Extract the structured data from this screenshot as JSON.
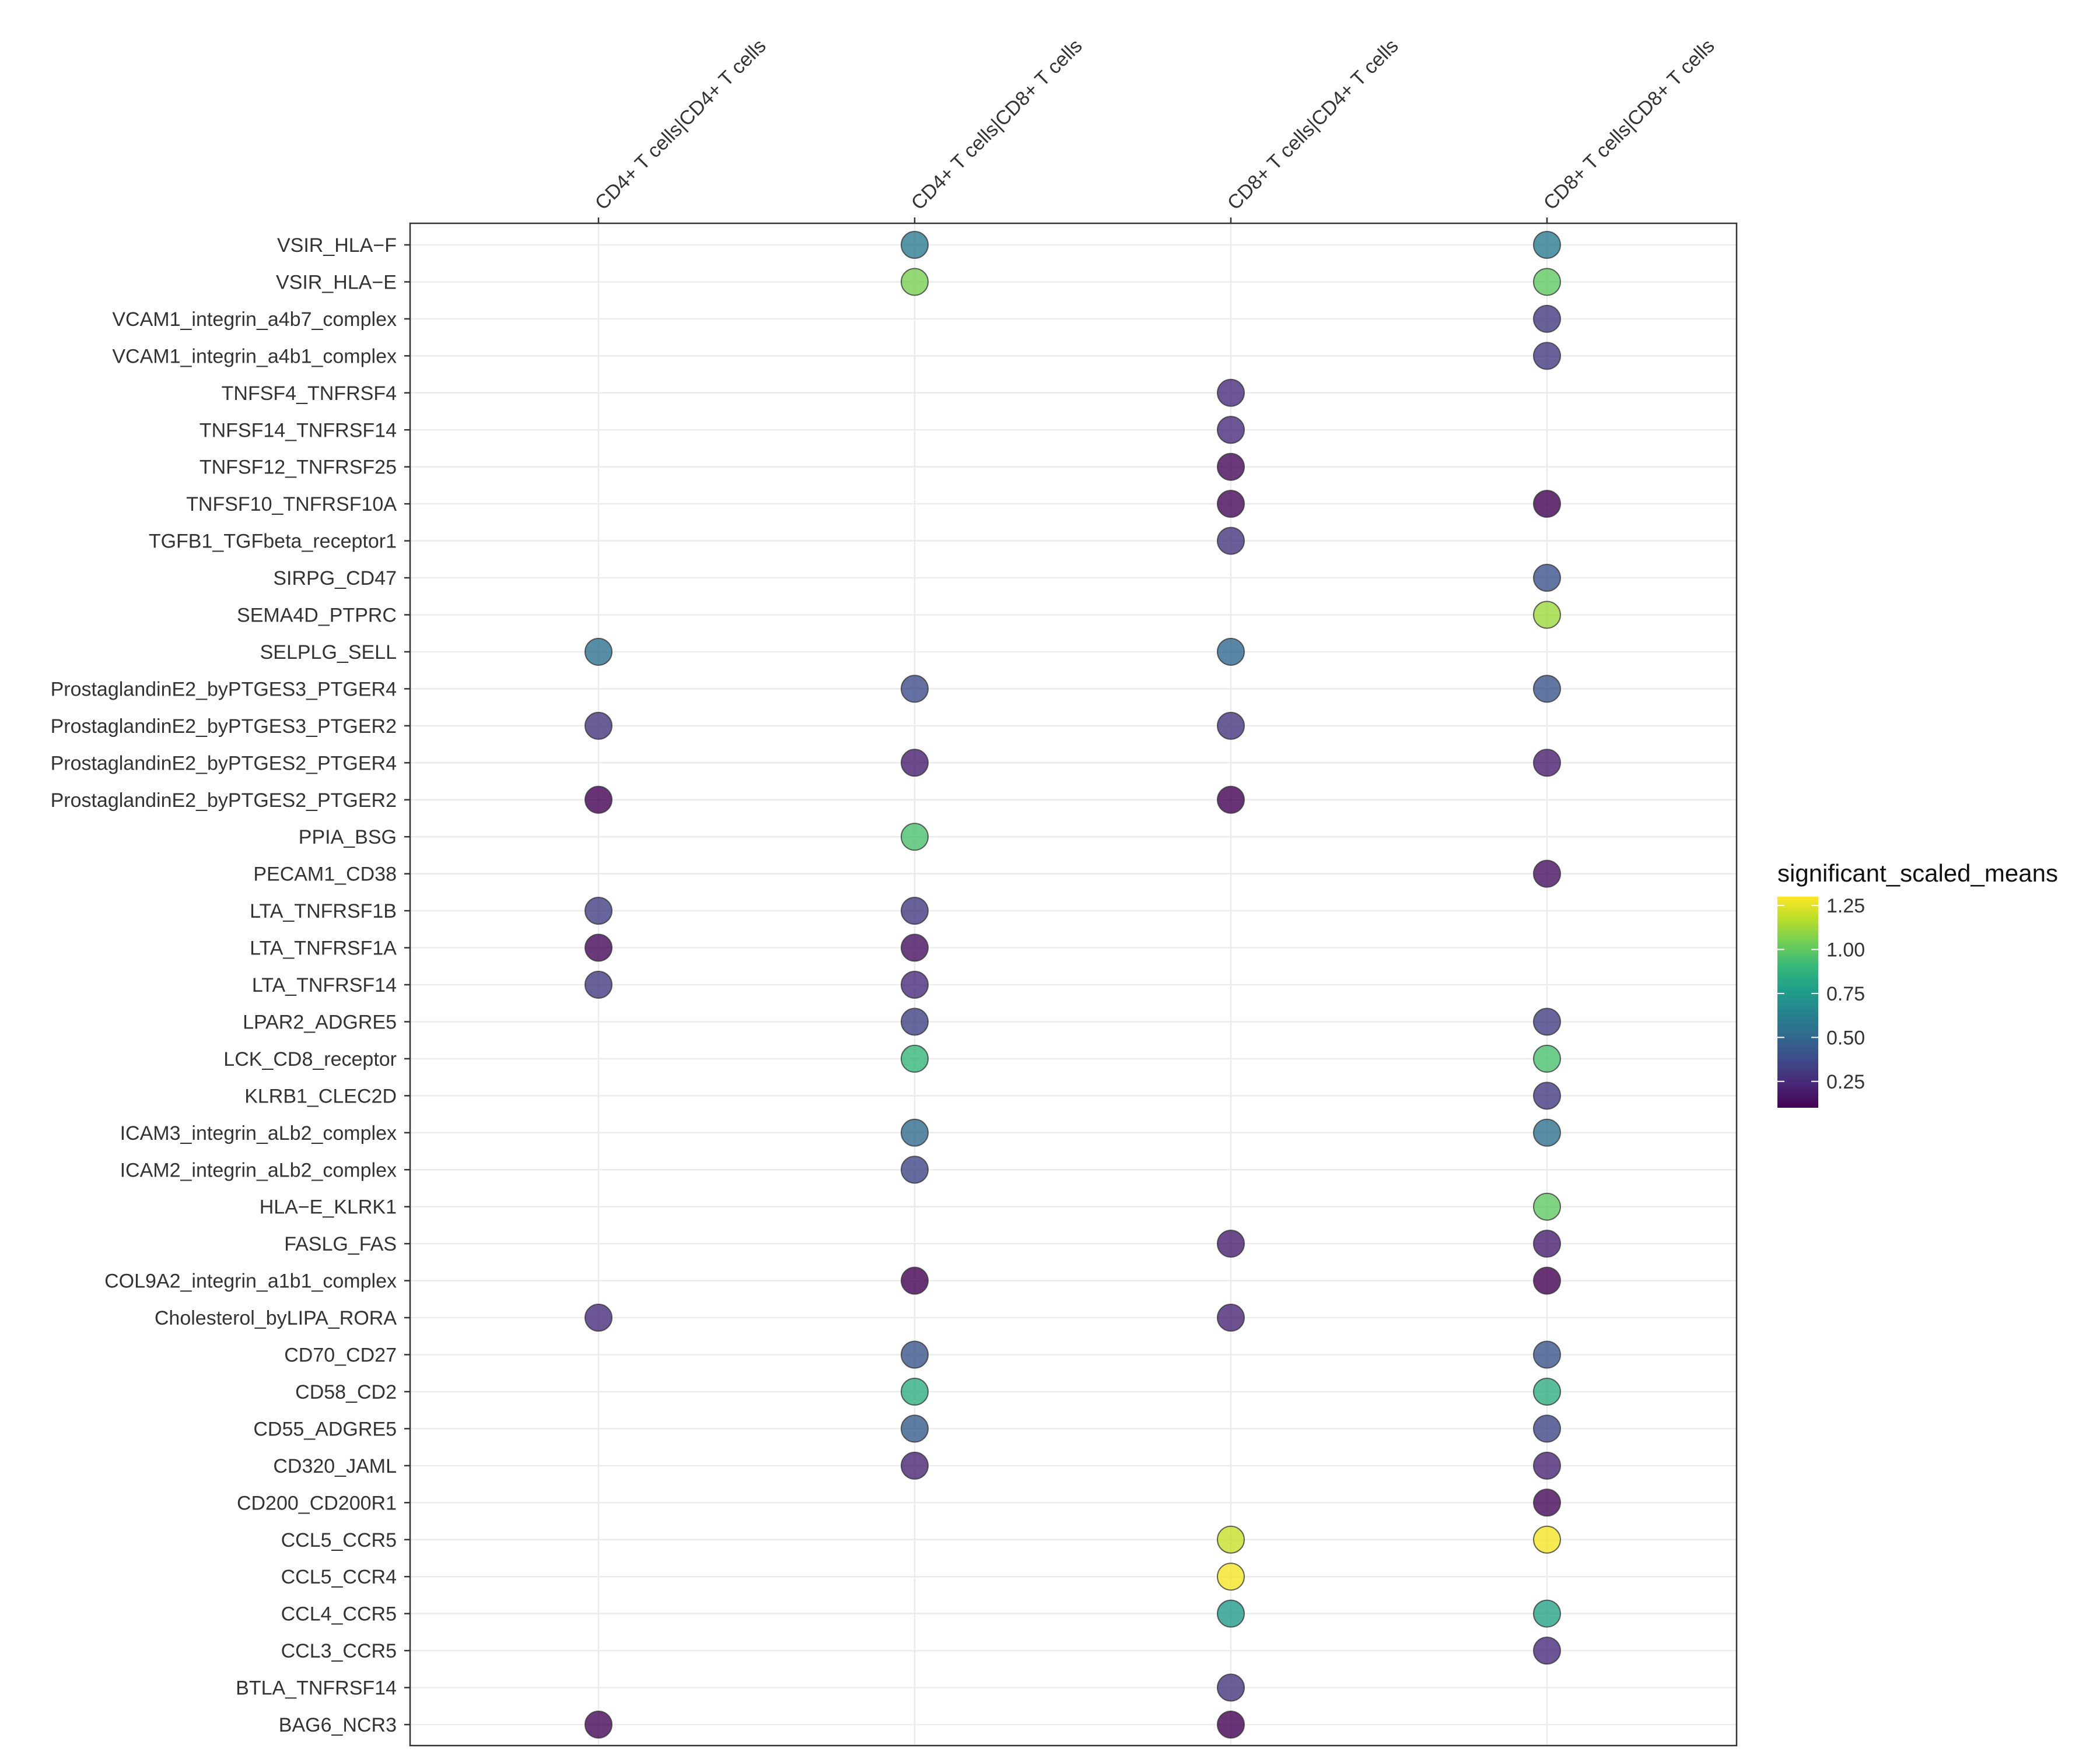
{
  "chart_data": {
    "type": "scatter",
    "title": "",
    "xlabel": "",
    "ylabel": "",
    "x_categories": [
      "CD4+ T cells|CD4+ T cells",
      "CD4+ T cells|CD8+ T cells",
      "CD8+ T cells|CD4+ T cells",
      "CD8+ T cells|CD8+ T cells"
    ],
    "y_categories": [
      "VSIR_HLA−F",
      "VSIR_HLA−E",
      "VCAM1_integrin_a4b7_complex",
      "VCAM1_integrin_a4b1_complex",
      "TNFSF4_TNFRSF4",
      "TNFSF14_TNFRSF14",
      "TNFSF12_TNFRSF25",
      "TNFSF10_TNFRSF10A",
      "TGFB1_TGFbeta_receptor1",
      "SIRPG_CD47",
      "SEMA4D_PTPRC",
      "SELPLG_SELL",
      "ProstaglandinE2_byPTGES3_PTGER4",
      "ProstaglandinE2_byPTGES3_PTGER2",
      "ProstaglandinE2_byPTGES2_PTGER4",
      "ProstaglandinE2_byPTGES2_PTGER2",
      "PPIA_BSG",
      "PECAM1_CD38",
      "LTA_TNFRSF1B",
      "LTA_TNFRSF1A",
      "LTA_TNFRSF14",
      "LPAR2_ADGRE5",
      "LCK_CD8_receptor",
      "KLRB1_CLEC2D",
      "ICAM3_integrin_aLb2_complex",
      "ICAM2_integrin_aLb2_complex",
      "HLA−E_KLRK1",
      "FASLG_FAS",
      "COL9A2_integrin_a1b1_complex",
      "Cholesterol_byLIPA_RORA",
      "CD70_CD27",
      "CD58_CD2",
      "CD55_ADGRE5",
      "CD320_JAML",
      "CD200_CD200R1",
      "CCL5_CCR5",
      "CCL5_CCR4",
      "CCL4_CCR5",
      "CCL3_CCR5",
      "BTLA_TNFRSF14",
      "BAG6_NCR3"
    ],
    "points": [
      {
        "y": "VSIR_HLA−F",
        "x": "CD4+ T cells|CD8+ T cells",
        "value": 0.6
      },
      {
        "y": "VSIR_HLA−F",
        "x": "CD8+ T cells|CD8+ T cells",
        "value": 0.6
      },
      {
        "y": "VSIR_HLA−E",
        "x": "CD4+ T cells|CD8+ T cells",
        "value": 1.05
      },
      {
        "y": "VSIR_HLA−E",
        "x": "CD8+ T cells|CD8+ T cells",
        "value": 1.0
      },
      {
        "y": "VCAM1_integrin_a4b7_complex",
        "x": "CD8+ T cells|CD8+ T cells",
        "value": 0.3
      },
      {
        "y": "VCAM1_integrin_a4b1_complex",
        "x": "CD8+ T cells|CD8+ T cells",
        "value": 0.3
      },
      {
        "y": "TNFSF4_TNFRSF4",
        "x": "CD8+ T cells|CD4+ T cells",
        "value": 0.25
      },
      {
        "y": "TNFSF14_TNFRSF14",
        "x": "CD8+ T cells|CD4+ T cells",
        "value": 0.25
      },
      {
        "y": "TNFSF12_TNFRSF25",
        "x": "CD8+ T cells|CD4+ T cells",
        "value": 0.12
      },
      {
        "y": "TNFSF10_TNFRSF10A",
        "x": "CD8+ T cells|CD4+ T cells",
        "value": 0.12
      },
      {
        "y": "TNFSF10_TNFRSF10A",
        "x": "CD8+ T cells|CD8+ T cells",
        "value": 0.1
      },
      {
        "y": "TGFB1_TGFbeta_receptor1",
        "x": "CD8+ T cells|CD4+ T cells",
        "value": 0.28
      },
      {
        "y": "SIRPG_CD47",
        "x": "CD8+ T cells|CD8+ T cells",
        "value": 0.4
      },
      {
        "y": "SEMA4D_PTPRC",
        "x": "CD8+ T cells|CD8+ T cells",
        "value": 1.12
      },
      {
        "y": "SELPLG_SELL",
        "x": "CD4+ T cells|CD4+ T cells",
        "value": 0.55
      },
      {
        "y": "SELPLG_SELL",
        "x": "CD8+ T cells|CD4+ T cells",
        "value": 0.5
      },
      {
        "y": "ProstaglandinE2_byPTGES3_PTGER4",
        "x": "CD4+ T cells|CD8+ T cells",
        "value": 0.38
      },
      {
        "y": "ProstaglandinE2_byPTGES3_PTGER4",
        "x": "CD8+ T cells|CD8+ T cells",
        "value": 0.42
      },
      {
        "y": "ProstaglandinE2_byPTGES3_PTGER2",
        "x": "CD4+ T cells|CD4+ T cells",
        "value": 0.28
      },
      {
        "y": "ProstaglandinE2_byPTGES3_PTGER2",
        "x": "CD8+ T cells|CD4+ T cells",
        "value": 0.28
      },
      {
        "y": "ProstaglandinE2_byPTGES2_PTGER4",
        "x": "CD4+ T cells|CD8+ T cells",
        "value": 0.2
      },
      {
        "y": "ProstaglandinE2_byPTGES2_PTGER4",
        "x": "CD8+ T cells|CD8+ T cells",
        "value": 0.2
      },
      {
        "y": "ProstaglandinE2_byPTGES2_PTGER2",
        "x": "CD4+ T cells|CD4+ T cells",
        "value": 0.1
      },
      {
        "y": "ProstaglandinE2_byPTGES2_PTGER2",
        "x": "CD8+ T cells|CD4+ T cells",
        "value": 0.1
      },
      {
        "y": "PPIA_BSG",
        "x": "CD4+ T cells|CD8+ T cells",
        "value": 0.95
      },
      {
        "y": "PECAM1_CD38",
        "x": "CD8+ T cells|CD8+ T cells",
        "value": 0.15
      },
      {
        "y": "LTA_TNFRSF1B",
        "x": "CD4+ T cells|CD4+ T cells",
        "value": 0.32
      },
      {
        "y": "LTA_TNFRSF1B",
        "x": "CD4+ T cells|CD8+ T cells",
        "value": 0.3
      },
      {
        "y": "LTA_TNFRSF1A",
        "x": "CD4+ T cells|CD4+ T cells",
        "value": 0.12
      },
      {
        "y": "LTA_TNFRSF1A",
        "x": "CD4+ T cells|CD8+ T cells",
        "value": 0.15
      },
      {
        "y": "LTA_TNFRSF14",
        "x": "CD4+ T cells|CD4+ T cells",
        "value": 0.3
      },
      {
        "y": "LTA_TNFRSF14",
        "x": "CD4+ T cells|CD8+ T cells",
        "value": 0.25
      },
      {
        "y": "LPAR2_ADGRE5",
        "x": "CD4+ T cells|CD8+ T cells",
        "value": 0.33
      },
      {
        "y": "LPAR2_ADGRE5",
        "x": "CD8+ T cells|CD8+ T cells",
        "value": 0.32
      },
      {
        "y": "LCK_CD8_receptor",
        "x": "CD4+ T cells|CD8+ T cells",
        "value": 0.9
      },
      {
        "y": "LCK_CD8_receptor",
        "x": "CD8+ T cells|CD8+ T cells",
        "value": 0.95
      },
      {
        "y": "KLRB1_CLEC2D",
        "x": "CD8+ T cells|CD8+ T cells",
        "value": 0.3
      },
      {
        "y": "ICAM3_integrin_aLb2_complex",
        "x": "CD4+ T cells|CD8+ T cells",
        "value": 0.52
      },
      {
        "y": "ICAM3_integrin_aLb2_complex",
        "x": "CD8+ T cells|CD8+ T cells",
        "value": 0.55
      },
      {
        "y": "ICAM2_integrin_aLb2_complex",
        "x": "CD4+ T cells|CD8+ T cells",
        "value": 0.35
      },
      {
        "y": "HLA−E_KLRK1",
        "x": "CD8+ T cells|CD8+ T cells",
        "value": 1.0
      },
      {
        "y": "FASLG_FAS",
        "x": "CD8+ T cells|CD4+ T cells",
        "value": 0.2
      },
      {
        "y": "FASLG_FAS",
        "x": "CD8+ T cells|CD8+ T cells",
        "value": 0.2
      },
      {
        "y": "COL9A2_integrin_a1b1_complex",
        "x": "CD4+ T cells|CD8+ T cells",
        "value": 0.1
      },
      {
        "y": "COL9A2_integrin_a1b1_complex",
        "x": "CD8+ T cells|CD8+ T cells",
        "value": 0.1
      },
      {
        "y": "Cholesterol_byLIPA_RORA",
        "x": "CD4+ T cells|CD4+ T cells",
        "value": 0.25
      },
      {
        "y": "Cholesterol_byLIPA_RORA",
        "x": "CD8+ T cells|CD4+ T cells",
        "value": 0.22
      },
      {
        "y": "CD70_CD27",
        "x": "CD4+ T cells|CD8+ T cells",
        "value": 0.42
      },
      {
        "y": "CD70_CD27",
        "x": "CD8+ T cells|CD8+ T cells",
        "value": 0.42
      },
      {
        "y": "CD58_CD2",
        "x": "CD4+ T cells|CD8+ T cells",
        "value": 0.85
      },
      {
        "y": "CD58_CD2",
        "x": "CD8+ T cells|CD8+ T cells",
        "value": 0.85
      },
      {
        "y": "CD55_ADGRE5",
        "x": "CD4+ T cells|CD8+ T cells",
        "value": 0.45
      },
      {
        "y": "CD55_ADGRE5",
        "x": "CD8+ T cells|CD8+ T cells",
        "value": 0.35
      },
      {
        "y": "CD320_JAML",
        "x": "CD4+ T cells|CD8+ T cells",
        "value": 0.22
      },
      {
        "y": "CD320_JAML",
        "x": "CD8+ T cells|CD8+ T cells",
        "value": 0.22
      },
      {
        "y": "CD200_CD200R1",
        "x": "CD8+ T cells|CD8+ T cells",
        "value": 0.12
      },
      {
        "y": "CCL5_CCR5",
        "x": "CD8+ T cells|CD4+ T cells",
        "value": 1.2
      },
      {
        "y": "CCL5_CCR5",
        "x": "CD8+ T cells|CD8+ T cells",
        "value": 1.28
      },
      {
        "y": "CCL5_CCR4",
        "x": "CD8+ T cells|CD4+ T cells",
        "value": 1.28
      },
      {
        "y": "CCL4_CCR5",
        "x": "CD8+ T cells|CD4+ T cells",
        "value": 0.75
      },
      {
        "y": "CCL4_CCR5",
        "x": "CD8+ T cells|CD8+ T cells",
        "value": 0.8
      },
      {
        "y": "CCL3_CCR5",
        "x": "CD8+ T cells|CD8+ T cells",
        "value": 0.25
      },
      {
        "y": "BTLA_TNFRSF14",
        "x": "CD8+ T cells|CD4+ T cells",
        "value": 0.28
      },
      {
        "y": "BAG6_NCR3",
        "x": "CD4+ T cells|CD4+ T cells",
        "value": 0.12
      },
      {
        "y": "BAG6_NCR3",
        "x": "CD8+ T cells|CD4+ T cells",
        "value": 0.1
      }
    ],
    "legend": {
      "title": "significant_scaled_means",
      "position": "right",
      "range": [
        0.1,
        1.3
      ],
      "ticks": [
        0.25,
        0.5,
        0.75,
        1.0,
        1.25
      ],
      "tick_labels": [
        "0.25",
        "0.50",
        "0.75",
        "1.00",
        "1.25"
      ],
      "colormap": "viridis",
      "stops": [
        "#440154",
        "#482878",
        "#3e4989",
        "#31688e",
        "#26828e",
        "#1f9e89",
        "#35b779",
        "#6ece58",
        "#b5de2b",
        "#fde725"
      ]
    },
    "grid": true
  }
}
